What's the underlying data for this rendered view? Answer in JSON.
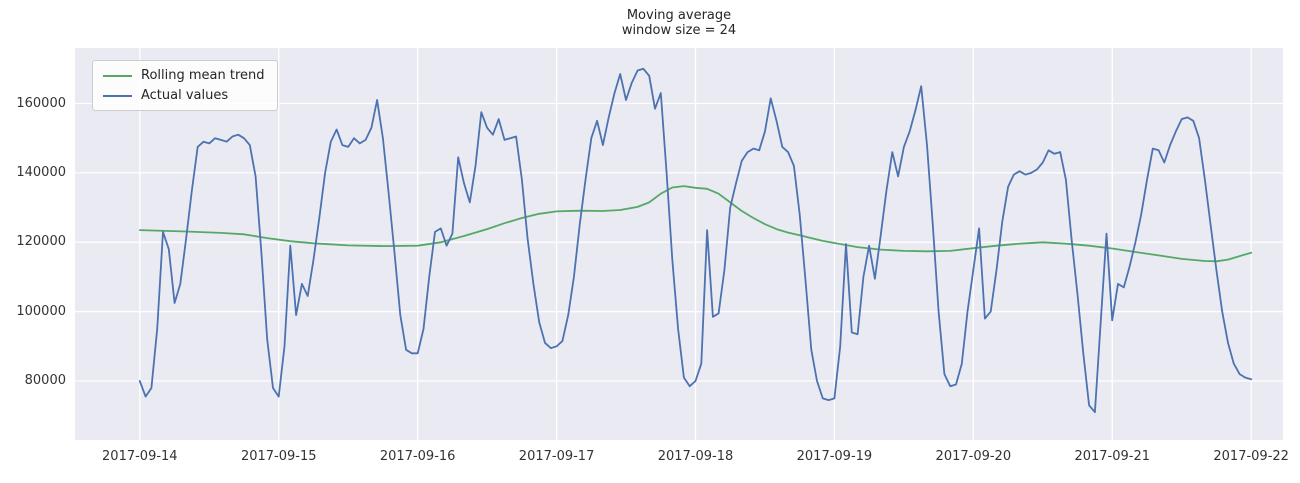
{
  "title": {
    "line1": "Moving average",
    "line2": "window size = 24"
  },
  "legend": {
    "items": [
      {
        "label": "Rolling mean trend",
        "color": "#55a868"
      },
      {
        "label": "Actual values",
        "color": "#4c72b0"
      }
    ]
  },
  "colors": {
    "plot_background": "#eaeaf2",
    "gridline": "#ffffff",
    "rolling_mean_line": "#55a868",
    "actual_values_line": "#4c72b0"
  },
  "chart_data": {
    "type": "line",
    "title": "Moving average\nwindow size = 24",
    "xlabel": "",
    "ylabel": "",
    "legend_position": "upper left",
    "grid": {
      "horizontal": true,
      "vertical": true,
      "color": "#ffffff"
    },
    "plot_bg": "#eaeaf2",
    "x_unit": "hours since 2017-09-14 00:00",
    "xlim": [
      -11.2,
      197.5
    ],
    "ylim": [
      63000,
      176000
    ],
    "yticks": [
      80000,
      100000,
      120000,
      140000,
      160000
    ],
    "xticks": [
      {
        "pos": 0,
        "label": "2017-09-14"
      },
      {
        "pos": 24,
        "label": "2017-09-15"
      },
      {
        "pos": 48,
        "label": "2017-09-16"
      },
      {
        "pos": 72,
        "label": "2017-09-17"
      },
      {
        "pos": 96,
        "label": "2017-09-18"
      },
      {
        "pos": 120,
        "label": "2017-09-19"
      },
      {
        "pos": 144,
        "label": "2017-09-20"
      },
      {
        "pos": 168,
        "label": "2017-09-21"
      },
      {
        "pos": 192,
        "label": "2017-09-22"
      }
    ],
    "series": [
      {
        "name": "Rolling mean trend",
        "color": "#55a868",
        "x": [
          0,
          8,
          14,
          18,
          22,
          26,
          30,
          36,
          42,
          48,
          52,
          56,
          60,
          63,
          66,
          69,
          72,
          76,
          80,
          83,
          86,
          88,
          90,
          92,
          94,
          96,
          98,
          100,
          102,
          104,
          106,
          108,
          110,
          112,
          114,
          116,
          118,
          120,
          124,
          128,
          132,
          136,
          140,
          144,
          148,
          152,
          156,
          160,
          164,
          168,
          172,
          176,
          180,
          184,
          186,
          188,
          190,
          192
        ],
        "values": [
          123500,
          123100,
          122700,
          122300,
          121200,
          120300,
          119700,
          119100,
          118900,
          119000,
          120000,
          121800,
          123800,
          125500,
          127000,
          128200,
          128900,
          129100,
          129000,
          129300,
          130200,
          131500,
          134000,
          135800,
          136200,
          135700,
          135400,
          134000,
          131500,
          129000,
          127000,
          125200,
          123800,
          122800,
          122000,
          121200,
          120400,
          119800,
          118600,
          117900,
          117500,
          117400,
          117500,
          118300,
          119000,
          119600,
          120000,
          119600,
          119000,
          118200,
          117200,
          116200,
          115200,
          114600,
          114500,
          115000,
          116000,
          117000
        ]
      },
      {
        "name": "Actual values",
        "color": "#4c72b0",
        "x_start": 0,
        "x_step": 1,
        "values": [
          80000,
          75500,
          78000,
          95000,
          123000,
          118000,
          102500,
          108000,
          121000,
          135000,
          147500,
          149000,
          148500,
          150000,
          149500,
          149000,
          150500,
          151000,
          150000,
          148000,
          139000,
          117000,
          92000,
          78000,
          75500,
          90000,
          119000,
          99000,
          108000,
          104500,
          115000,
          127000,
          140000,
          149000,
          152500,
          148000,
          147500,
          150000,
          148500,
          149500,
          153000,
          161000,
          150000,
          134000,
          117000,
          99000,
          89000,
          88000,
          88000,
          95000,
          110000,
          123000,
          124000,
          119000,
          122500,
          144500,
          137000,
          131500,
          142000,
          157500,
          153000,
          151000,
          155500,
          149500,
          150000,
          150500,
          138000,
          121000,
          108000,
          97000,
          91000,
          89500,
          90000,
          91500,
          99000,
          110000,
          125000,
          138000,
          150000,
          155000,
          148000,
          156000,
          163000,
          168500,
          161000,
          166000,
          169500,
          170000,
          168000,
          158500,
          163000,
          140000,
          115000,
          95000,
          81000,
          78500,
          80000,
          85000,
          123500,
          98500,
          99500,
          112000,
          130000,
          137000,
          143500,
          146000,
          147000,
          146500,
          152000,
          161500,
          155000,
          147500,
          146000,
          142000,
          128000,
          109000,
          89000,
          80000,
          75000,
          74500,
          75000,
          90000,
          119500,
          94000,
          93500,
          110000,
          119000,
          109500,
          122000,
          135000,
          146000,
          139000,
          147500,
          152000,
          158000,
          165000,
          148000,
          125000,
          100000,
          82000,
          78500,
          79000,
          85000,
          100000,
          112000,
          124000,
          98000,
          100000,
          112000,
          126000,
          136000,
          139500,
          140500,
          139500,
          140000,
          141000,
          143000,
          146500,
          145500,
          146000,
          138000,
          120500,
          105000,
          88000,
          73000,
          71000,
          97000,
          122500,
          97500,
          108000,
          107000,
          113000,
          120000,
          128000,
          138000,
          147000,
          146500,
          143000,
          148000,
          152000,
          155500,
          156000,
          155000,
          150000,
          138000,
          125000,
          112000,
          100000,
          91000,
          85000,
          82000,
          81000,
          80500
        ]
      }
    ]
  }
}
